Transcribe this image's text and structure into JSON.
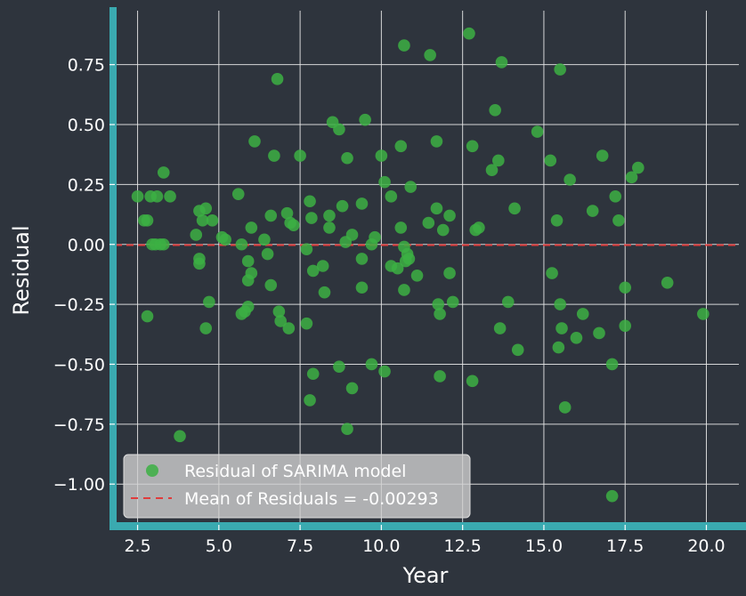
{
  "theme": {
    "background": "#2e343d",
    "grid": "#e8e8e8",
    "spine": "#3aaab0",
    "point": "#3cb043",
    "mean_line": "#e03c3c",
    "text": "#ffffff"
  },
  "chart_data": {
    "type": "scatter",
    "xlabel": "Year",
    "ylabel": "Residual",
    "xlim": [
      1.8,
      21.0
    ],
    "ylim": [
      -1.17,
      0.99
    ],
    "xticks": [
      2.5,
      5.0,
      7.5,
      10.0,
      12.5,
      15.0,
      17.5,
      20.0
    ],
    "xtick_labels": [
      "2.5",
      "5.0",
      "7.5",
      "10.0",
      "12.5",
      "15.0",
      "17.5",
      "20.0"
    ],
    "yticks": [
      0.75,
      0.5,
      0.25,
      0.0,
      -0.25,
      -0.5,
      -0.75,
      -1.0
    ],
    "ytick_labels": [
      "0.75",
      "0.50",
      "0.25",
      "0.00",
      "−0.25",
      "−0.50",
      "−0.75",
      "−1.00"
    ],
    "grid": true,
    "legend_position": "bottom-left",
    "legend": {
      "scatter_label": "Residual of SARIMA model",
      "line_label": "Mean of Residuals = -0.00293"
    },
    "mean": -0.00293,
    "series": [
      {
        "name": "Residual of SARIMA model",
        "points": [
          [
            2.5,
            0.2
          ],
          [
            2.7,
            0.1
          ],
          [
            2.8,
            0.1
          ],
          [
            2.8,
            -0.3
          ],
          [
            2.9,
            0.2
          ],
          [
            2.95,
            0.0
          ],
          [
            3.05,
            0.0
          ],
          [
            3.1,
            0.2
          ],
          [
            3.2,
            0.0
          ],
          [
            3.3,
            0.0
          ],
          [
            3.3,
            0.3
          ],
          [
            3.5,
            0.2
          ],
          [
            3.8,
            -0.8
          ],
          [
            4.3,
            0.04
          ],
          [
            4.4,
            0.14
          ],
          [
            4.4,
            -0.06
          ],
          [
            4.4,
            -0.08
          ],
          [
            4.5,
            0.1
          ],
          [
            4.6,
            0.15
          ],
          [
            4.6,
            -0.35
          ],
          [
            4.7,
            -0.24
          ],
          [
            4.8,
            0.1
          ],
          [
            5.1,
            0.03
          ],
          [
            5.2,
            0.02
          ],
          [
            5.6,
            0.21
          ],
          [
            5.7,
            0.0
          ],
          [
            5.7,
            -0.29
          ],
          [
            5.8,
            -0.28
          ],
          [
            5.9,
            -0.26
          ],
          [
            5.9,
            -0.07
          ],
          [
            5.9,
            -0.15
          ],
          [
            6.0,
            0.07
          ],
          [
            6.0,
            -0.12
          ],
          [
            6.1,
            0.43
          ],
          [
            6.4,
            0.02
          ],
          [
            6.5,
            -0.04
          ],
          [
            6.6,
            0.12
          ],
          [
            6.6,
            -0.17
          ],
          [
            6.7,
            0.37
          ],
          [
            6.8,
            0.69
          ],
          [
            6.85,
            -0.28
          ],
          [
            6.9,
            -0.32
          ],
          [
            7.1,
            0.13
          ],
          [
            7.15,
            -0.35
          ],
          [
            7.2,
            0.09
          ],
          [
            7.3,
            0.08
          ],
          [
            7.5,
            0.37
          ],
          [
            7.7,
            -0.02
          ],
          [
            7.7,
            -0.33
          ],
          [
            7.8,
            0.18
          ],
          [
            7.8,
            -0.65
          ],
          [
            7.85,
            0.11
          ],
          [
            7.9,
            -0.11
          ],
          [
            7.9,
            -0.54
          ],
          [
            8.2,
            -0.09
          ],
          [
            8.25,
            -0.2
          ],
          [
            8.4,
            0.12
          ],
          [
            8.4,
            0.07
          ],
          [
            8.5,
            0.51
          ],
          [
            8.7,
            -0.51
          ],
          [
            8.7,
            0.48
          ],
          [
            8.8,
            0.16
          ],
          [
            8.9,
            0.01
          ],
          [
            8.95,
            0.36
          ],
          [
            8.95,
            -0.77
          ],
          [
            9.1,
            0.04
          ],
          [
            9.1,
            -0.6
          ],
          [
            9.4,
            0.17
          ],
          [
            9.4,
            -0.06
          ],
          [
            9.4,
            -0.18
          ],
          [
            9.5,
            0.52
          ],
          [
            9.7,
            -0.5
          ],
          [
            9.7,
            0.0
          ],
          [
            9.8,
            0.03
          ],
          [
            10.0,
            0.37
          ],
          [
            10.1,
            0.26
          ],
          [
            10.1,
            -0.53
          ],
          [
            10.3,
            0.2
          ],
          [
            10.3,
            -0.09
          ],
          [
            10.5,
            -0.1
          ],
          [
            10.6,
            0.41
          ],
          [
            10.6,
            0.07
          ],
          [
            10.7,
            0.83
          ],
          [
            10.7,
            -0.01
          ],
          [
            10.7,
            -0.19
          ],
          [
            10.75,
            -0.07
          ],
          [
            10.8,
            -0.04
          ],
          [
            10.85,
            -0.06
          ],
          [
            10.9,
            0.24
          ],
          [
            11.1,
            -0.13
          ],
          [
            11.45,
            0.09
          ],
          [
            11.5,
            0.79
          ],
          [
            11.7,
            0.43
          ],
          [
            11.7,
            0.15
          ],
          [
            11.75,
            -0.25
          ],
          [
            11.8,
            -0.29
          ],
          [
            11.8,
            -0.55
          ],
          [
            11.9,
            0.06
          ],
          [
            12.1,
            0.12
          ],
          [
            12.1,
            -0.12
          ],
          [
            12.2,
            -0.24
          ],
          [
            12.7,
            0.88
          ],
          [
            12.8,
            0.41
          ],
          [
            12.8,
            -0.57
          ],
          [
            12.9,
            0.06
          ],
          [
            13.0,
            0.07
          ],
          [
            13.4,
            0.31
          ],
          [
            13.5,
            0.56
          ],
          [
            13.6,
            0.35
          ],
          [
            13.7,
            0.76
          ],
          [
            13.65,
            -0.35
          ],
          [
            13.9,
            -0.24
          ],
          [
            14.1,
            0.15
          ],
          [
            14.2,
            -0.44
          ],
          [
            14.8,
            0.47
          ],
          [
            15.2,
            0.35
          ],
          [
            15.25,
            -0.12
          ],
          [
            15.4,
            0.1
          ],
          [
            15.45,
            -0.43
          ],
          [
            15.5,
            0.73
          ],
          [
            15.5,
            -0.25
          ],
          [
            15.55,
            -0.35
          ],
          [
            15.65,
            -0.68
          ],
          [
            15.8,
            0.27
          ],
          [
            16.0,
            -0.39
          ],
          [
            16.2,
            -0.29
          ],
          [
            16.5,
            0.14
          ],
          [
            16.7,
            -0.37
          ],
          [
            16.8,
            0.37
          ],
          [
            17.1,
            -0.5
          ],
          [
            17.1,
            -1.05
          ],
          [
            17.2,
            0.2
          ],
          [
            17.3,
            0.1
          ],
          [
            17.5,
            -0.18
          ],
          [
            17.5,
            -0.34
          ],
          [
            17.7,
            0.28
          ],
          [
            17.9,
            0.32
          ],
          [
            18.8,
            -0.16
          ],
          [
            19.9,
            -0.29
          ]
        ]
      }
    ]
  }
}
